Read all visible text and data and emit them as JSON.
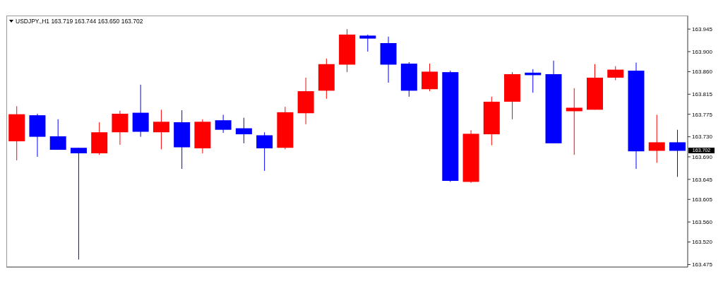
{
  "chart_data": {
    "type": "candlestick",
    "title": "USDJPY.,H1 163.719 163.744 163.650 163.702",
    "categories": [
      null,
      null,
      null,
      null,
      null,
      null,
      null,
      null,
      null,
      null,
      null,
      null,
      null,
      null,
      null,
      null,
      null,
      null,
      null,
      null,
      null,
      null,
      null,
      null,
      null,
      null,
      null,
      null,
      null,
      null,
      null,
      null,
      null
    ],
    "ohlc": [
      [
        163.721,
        163.791,
        163.683,
        163.775
      ],
      [
        163.773,
        163.776,
        163.69,
        163.73
      ],
      [
        163.731,
        163.765,
        163.704,
        163.704
      ],
      [
        163.708,
        163.708,
        163.485,
        163.697
      ],
      [
        163.697,
        163.759,
        163.694,
        163.739
      ],
      [
        163.739,
        163.782,
        163.714,
        163.776
      ],
      [
        163.778,
        163.834,
        163.73,
        163.74
      ],
      [
        163.739,
        163.784,
        163.705,
        163.76
      ],
      [
        163.759,
        163.783,
        163.666,
        163.709
      ],
      [
        163.707,
        163.765,
        163.697,
        163.76
      ],
      [
        163.763,
        163.774,
        163.738,
        163.744
      ],
      [
        163.747,
        163.768,
        163.717,
        163.735
      ],
      [
        163.733,
        163.739,
        163.662,
        163.707
      ],
      [
        163.708,
        163.79,
        163.705,
        163.779
      ],
      [
        163.777,
        163.848,
        163.755,
        163.821
      ],
      [
        163.822,
        163.886,
        163.806,
        163.875
      ],
      [
        163.874,
        163.945,
        163.859,
        163.934
      ],
      [
        163.932,
        163.934,
        163.9,
        163.926
      ],
      [
        163.917,
        163.93,
        163.838,
        163.874
      ],
      [
        163.876,
        163.879,
        163.81,
        163.822
      ],
      [
        163.825,
        163.876,
        163.821,
        163.86
      ],
      [
        163.859,
        163.862,
        163.64,
        163.642
      ],
      [
        163.64,
        163.743,
        163.638,
        163.736
      ],
      [
        163.735,
        163.81,
        163.713,
        163.8
      ],
      [
        163.8,
        163.859,
        163.765,
        163.855
      ],
      [
        163.858,
        163.865,
        163.818,
        163.853
      ],
      [
        163.855,
        163.882,
        163.717,
        163.717
      ],
      [
        163.781,
        163.827,
        163.694,
        163.788
      ],
      [
        163.784,
        163.875,
        163.784,
        163.848
      ],
      [
        163.848,
        163.871,
        163.843,
        163.864
      ],
      [
        163.862,
        163.878,
        163.666,
        163.701
      ],
      [
        163.702,
        163.774,
        163.678,
        163.719
      ],
      [
        163.719,
        163.744,
        163.65,
        163.702
      ]
    ],
    "colors": [
      "#ff0000",
      "#0000ff",
      "#0000ff",
      "#0000ff",
      "#ff0000",
      "#ff0000",
      "#0000ff",
      "#ff0000",
      "#0000ff",
      "#ff0000",
      "#0000ff",
      "#0000ff",
      "#0000ff",
      "#ff0000",
      "#ff0000",
      "#ff0000",
      "#ff0000",
      "#0000ff",
      "#0000ff",
      "#0000ff",
      "#ff0000",
      "#0000ff",
      "#ff0000",
      "#ff0000",
      "#ff0000",
      "#0000ff",
      "#0000ff",
      "#ff0000",
      "#ff0000",
      "#ff0000",
      "#0000ff",
      "#ff0000",
      "#0000ff"
    ],
    "ylim": [
      163.47,
      163.972
    ],
    "yticks": [
      163.475,
      {
        "value": 163.52,
        "label": "163.520"
      },
      {
        "value": 163.56,
        "label": "163.560"
      },
      163.605,
      163.645,
      {
        "value": 163.69,
        "label": "163.690"
      },
      {
        "value": 163.73,
        "label": "163.730"
      },
      163.775,
      163.815,
      {
        "value": 163.86,
        "label": "163.860"
      },
      {
        "value": 163.9,
        "label": "163.900"
      },
      163.945
    ],
    "tick_labels": "y",
    "annotations": [
      "163.702"
    ]
  }
}
